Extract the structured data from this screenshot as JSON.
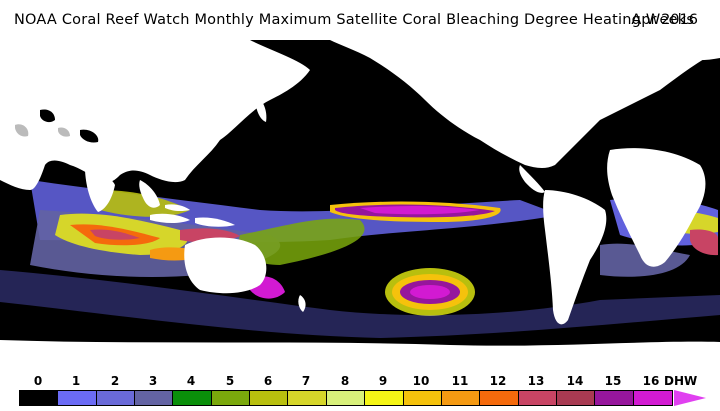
{
  "header": {
    "title": "NOAA Coral Reef Watch Monthly Maximum Satellite Coral Bleaching Degree Heating Weeks",
    "date": "Apr 2016"
  },
  "legend": {
    "ticks": [
      "0",
      "1",
      "2",
      "3",
      "4",
      "5",
      "6",
      "7",
      "8",
      "9",
      "10",
      "11",
      "12",
      "13",
      "14",
      "15",
      "16"
    ],
    "units": "DHW",
    "colors": [
      "#000000",
      "#6b6bf5",
      "#6a6ad8",
      "#6363a3",
      "#0a8f0a",
      "#7aa80c",
      "#b8bf0e",
      "#d6d62a",
      "#d8f07a",
      "#f5f516",
      "#f5c20c",
      "#f59a12",
      "#f56a0c",
      "#c84464",
      "#a83a52",
      "#96169c",
      "#d21ad2"
    ]
  },
  "map": {
    "land_color": "#ffffff",
    "ocean_color": "#000000"
  }
}
